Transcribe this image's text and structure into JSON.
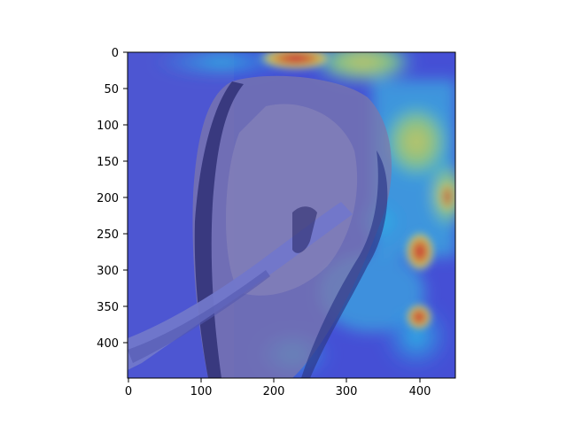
{
  "figure": {
    "kind": "image-with-heatmap-overlay",
    "subject": "bird-perched-on-branch",
    "colormap": "jet",
    "colors": {
      "background": "#ffffff",
      "axis": "#000000",
      "low": "#3a3fd8",
      "mid_cyan": "#2fd6e8",
      "mid_yellow": "#e8e24a",
      "high": "#e8261c"
    }
  },
  "axes": {
    "x_ticks": [
      "0",
      "100",
      "200",
      "300",
      "400"
    ],
    "y_ticks": [
      "0",
      "50",
      "100",
      "150",
      "200",
      "250",
      "300",
      "350",
      "400"
    ]
  }
}
